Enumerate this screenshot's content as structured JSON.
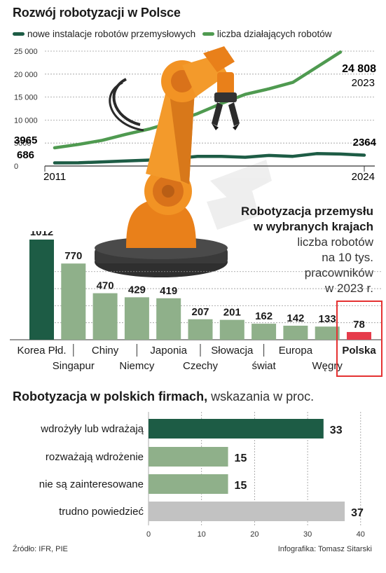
{
  "colors": {
    "dark_green": "#1d5c45",
    "light_green": "#8fb08a",
    "trend_green": "#4f9a50",
    "grey": "#c2c2c2",
    "poland_red": "#e63b4b",
    "robot_orange": "#f08a1c",
    "highlight_red": "#e53232"
  },
  "robot_arm": {
    "icon": "industrial-robot-arm-illustration"
  },
  "chart1": {
    "title": "Rozwój robotyzacji w Polsce",
    "legend": [
      "nowe instalacje robotów przemysłowych",
      "liczba działających robotów"
    ],
    "y_ticks": [
      "25 000",
      "20 000",
      "15 000",
      "10 000",
      "5000",
      "0"
    ],
    "x_start": "2011",
    "x_end": "2024",
    "label_start_working": "3965",
    "label_start_new": "686",
    "label_end_working": "24 808",
    "label_end_working_year": "2023",
    "label_end_new": "2364"
  },
  "chart2": {
    "title_line1": "Robotyzacja przemysłu",
    "title_line2": "w wybranych krajach",
    "sub_line1": "liczba robotów",
    "sub_line2": "na 10 tys.",
    "sub_line3": "pracowników",
    "sub_line4": "w 2023 r."
  },
  "chart3": {
    "title_bold": "Robotyzacja w polskich firmach,",
    "title_normal": " wskazania w proc."
  },
  "footer": {
    "source": "Źródło: IFR, PIE",
    "credit": "Infografika: Tomasz Sitarski"
  },
  "chart_data": [
    {
      "type": "line",
      "title": "Rozwój robotyzacji w Polsce",
      "x": [
        2011,
        2012,
        2013,
        2014,
        2015,
        2016,
        2017,
        2018,
        2019,
        2020,
        2021,
        2022,
        2023,
        2024
      ],
      "xlim": [
        2011,
        2024
      ],
      "ylim": [
        0,
        25000
      ],
      "grid": true,
      "legend_position": "top",
      "series": [
        {
          "name": "nowe instalacje robotów przemysłowych",
          "values": [
            686,
            700,
            900,
            1100,
            1300,
            1600,
            2100,
            2100,
            1900,
            2300,
            2100,
            2700,
            2600,
            2364
          ]
        },
        {
          "name": "liczba działających robotów",
          "values": [
            3965,
            4700,
            5600,
            6900,
            8100,
            9600,
            11400,
            13600,
            15600,
            16800,
            18200,
            21500,
            24808,
            null
          ]
        }
      ]
    },
    {
      "type": "bar",
      "title": "Robotyzacja przemysłu w wybranych krajach",
      "categories": [
        "Korea Płd.",
        "Singapur",
        "Chiny",
        "Niemcy",
        "Japonia",
        "Czechy",
        "Słowacja",
        "świat",
        "Europa",
        "Węgry",
        "Polska"
      ],
      "values": [
        1012,
        770,
        470,
        429,
        419,
        207,
        201,
        162,
        142,
        133,
        78
      ],
      "ylim": [
        0,
        1012
      ]
    },
    {
      "type": "bar",
      "orientation": "horizontal",
      "title": "Robotyzacja w polskich firmach",
      "categories": [
        "wdrożyły lub wdrażają",
        "rozważają wdrożenie",
        "nie są zainteresowane",
        "trudno powiedzieć"
      ],
      "values": [
        33,
        15,
        15,
        37
      ],
      "x_ticks": [
        "0",
        "10",
        "20",
        "30",
        "40"
      ],
      "xlim": [
        0,
        40
      ],
      "grid": true
    }
  ]
}
